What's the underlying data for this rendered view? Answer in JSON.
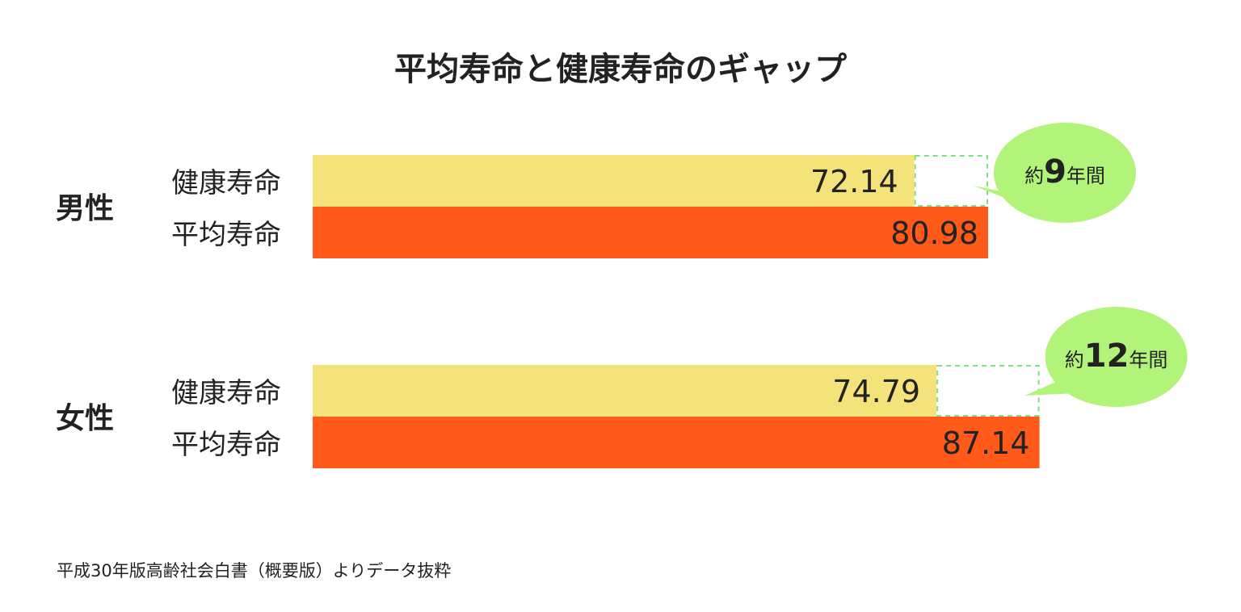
{
  "chart_data": {
    "type": "bar",
    "orientation": "horizontal",
    "title": "平均寿命と健康寿命のギャップ",
    "bar_labels": [
      "健康寿命",
      "平均寿命"
    ],
    "groups": [
      {
        "name": "男性",
        "healthy_life_expectancy": 72.14,
        "healthy_label": "72.14",
        "life_expectancy": 80.98,
        "life_label": "80.98",
        "gap_label": {
          "prefix": "約",
          "number": "9",
          "suffix": "年間"
        }
      },
      {
        "name": "女性",
        "healthy_life_expectancy": 74.79,
        "healthy_label": "74.79",
        "life_expectancy": 87.14,
        "life_label": "87.14",
        "gap_label": {
          "prefix": "約",
          "number": "12",
          "suffix": "年間"
        }
      }
    ],
    "colors": {
      "healthy_bar": "#F3E37A",
      "life_bar": "#FF5A1A",
      "gap_outline": "#7EE07E",
      "bubble": "#B2F47A"
    },
    "source": "平成30年版高齢社会白書（概要版）よりデータ抜粋"
  }
}
